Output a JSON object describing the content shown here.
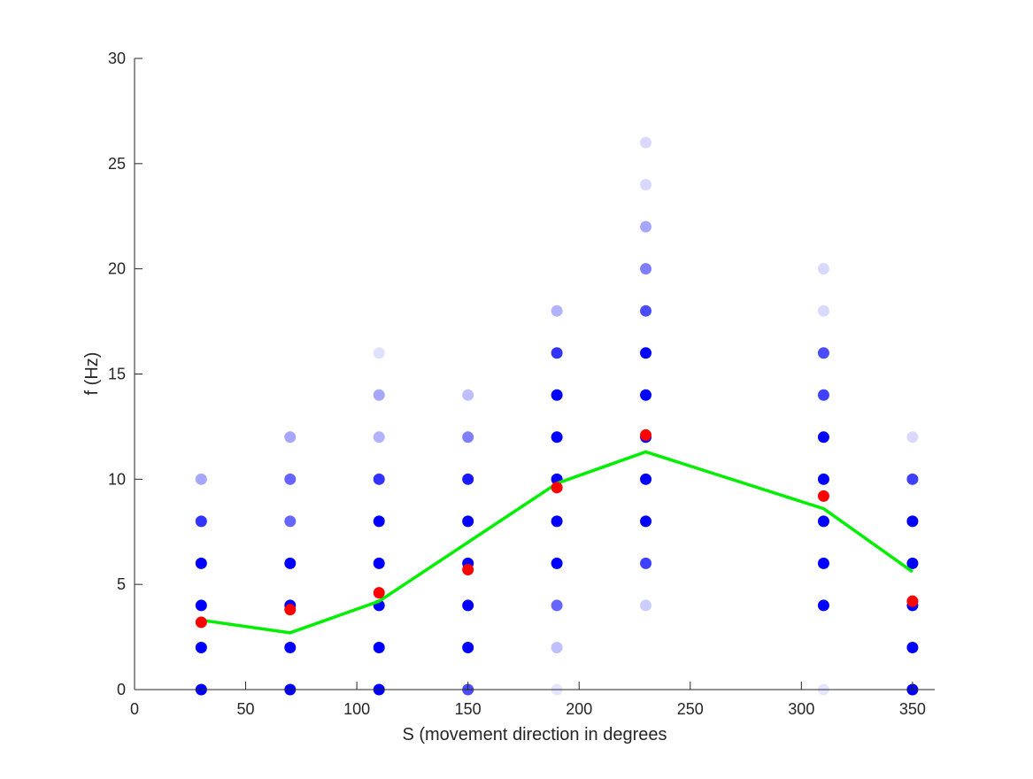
{
  "chart_data": {
    "type": "scatter",
    "title": "",
    "xlabel": "S (movement direction in degrees",
    "ylabel": "f (Hz)",
    "xlim": [
      0,
      360
    ],
    "ylim": [
      0,
      30
    ],
    "xticks": [
      0,
      50,
      100,
      150,
      200,
      250,
      300,
      350
    ],
    "yticks": [
      0,
      5,
      10,
      15,
      20,
      25,
      30
    ],
    "grid": false,
    "colors": {
      "trial_points": "#0000ff",
      "mean_points": "#ff0000",
      "fit_line": "#00ee00",
      "axis": "#262626"
    },
    "series": [
      {
        "kind": "trial-rates",
        "marker": "circle",
        "note_opacity": "opacity encodes how many trials share each rate",
        "columns": [
          {
            "x": 30,
            "points": [
              [
                0,
                1.0
              ],
              [
                2,
                1.0
              ],
              [
                4,
                1.0
              ],
              [
                6,
                1.0
              ],
              [
                8,
                0.8
              ],
              [
                10,
                0.35
              ]
            ]
          },
          {
            "x": 70,
            "points": [
              [
                0,
                1.0
              ],
              [
                2,
                1.0
              ],
              [
                4,
                1.0
              ],
              [
                6,
                1.0
              ],
              [
                8,
                0.6
              ],
              [
                10,
                0.6
              ],
              [
                12,
                0.35
              ]
            ]
          },
          {
            "x": 110,
            "points": [
              [
                0,
                1.0
              ],
              [
                2,
                1.0
              ],
              [
                4,
                1.0
              ],
              [
                6,
                1.0
              ],
              [
                8,
                1.0
              ],
              [
                10,
                0.8
              ],
              [
                12,
                0.3
              ],
              [
                14,
                0.35
              ],
              [
                16,
                0.12
              ]
            ]
          },
          {
            "x": 150,
            "points": [
              [
                0,
                0.7
              ],
              [
                2,
                1.0
              ],
              [
                4,
                1.0
              ],
              [
                6,
                1.0
              ],
              [
                8,
                1.0
              ],
              [
                10,
                0.9
              ],
              [
                12,
                0.5
              ],
              [
                14,
                0.25
              ]
            ]
          },
          {
            "x": 190,
            "points": [
              [
                0,
                0.1
              ],
              [
                2,
                0.25
              ],
              [
                4,
                0.6
              ],
              [
                6,
                1.0
              ],
              [
                8,
                1.0
              ],
              [
                10,
                1.0
              ],
              [
                12,
                1.0
              ],
              [
                14,
                1.0
              ],
              [
                16,
                0.8
              ],
              [
                18,
                0.3
              ]
            ]
          },
          {
            "x": 230,
            "points": [
              [
                4,
                0.2
              ],
              [
                6,
                0.75
              ],
              [
                8,
                1.0
              ],
              [
                10,
                1.0
              ],
              [
                12,
                1.0
              ],
              [
                14,
                1.0
              ],
              [
                16,
                1.0
              ],
              [
                18,
                0.7
              ],
              [
                20,
                0.5
              ],
              [
                22,
                0.35
              ],
              [
                24,
                0.15
              ],
              [
                26,
                0.15
              ]
            ]
          },
          {
            "x": 310,
            "points": [
              [
                0,
                0.1
              ],
              [
                4,
                1.0
              ],
              [
                6,
                1.0
              ],
              [
                8,
                1.0
              ],
              [
                10,
                1.0
              ],
              [
                12,
                1.0
              ],
              [
                14,
                0.75
              ],
              [
                16,
                0.7
              ],
              [
                18,
                0.15
              ],
              [
                20,
                0.15
              ]
            ]
          },
          {
            "x": 350,
            "points": [
              [
                0,
                1.0
              ],
              [
                2,
                1.0
              ],
              [
                4,
                1.0
              ],
              [
                6,
                1.0
              ],
              [
                8,
                1.0
              ],
              [
                10,
                0.75
              ],
              [
                12,
                0.15
              ]
            ]
          }
        ]
      },
      {
        "kind": "mean-rate",
        "marker": "circle",
        "x": [
          30,
          70,
          110,
          150,
          190,
          230,
          310,
          350
        ],
        "y": [
          3.2,
          3.8,
          4.6,
          5.7,
          9.6,
          12.1,
          9.2,
          4.2
        ]
      },
      {
        "kind": "fit",
        "marker": "line",
        "x": [
          30,
          70,
          110,
          150,
          190,
          230,
          310,
          350
        ],
        "y": [
          3.3,
          2.7,
          4.2,
          7.0,
          9.8,
          11.3,
          8.6,
          5.6
        ]
      }
    ]
  }
}
